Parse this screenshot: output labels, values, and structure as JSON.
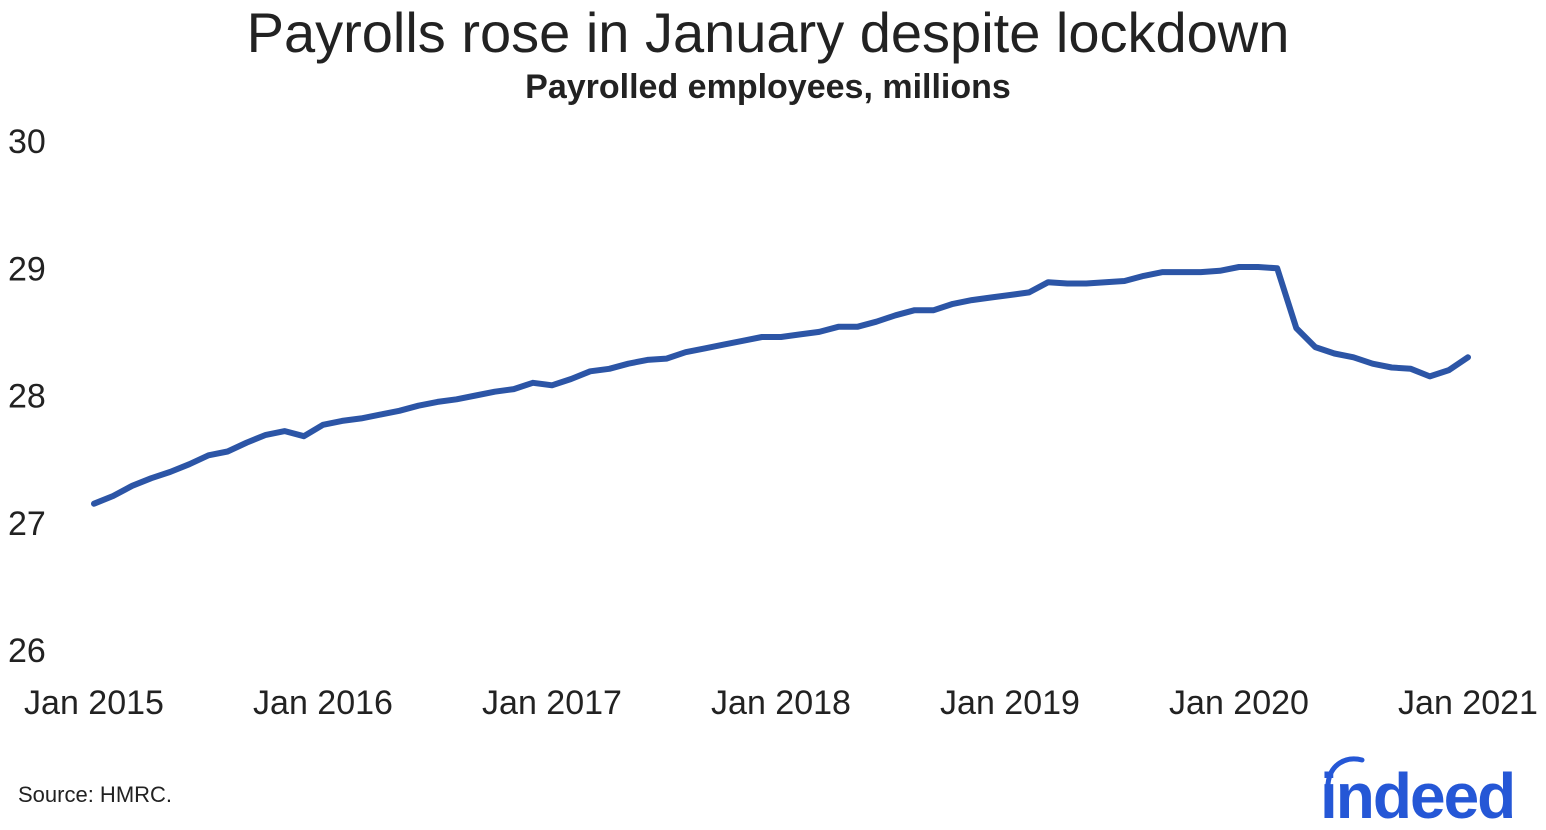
{
  "title": "Payrolls rose in January despite lockdown",
  "subtitle": "Payrolled employees, millions",
  "source": "Source: HMRC.",
  "logo_text": "indeed",
  "colors": {
    "line": "#2c55a6",
    "logo": "#2557d6",
    "text": "#222222"
  },
  "chart_data": {
    "type": "line",
    "title": "Payrolls rose in January despite lockdown",
    "subtitle": "Payrolled employees, millions",
    "xlabel": "",
    "ylabel": "",
    "ylim": [
      26,
      30
    ],
    "yticks": [
      "26",
      "27",
      "28",
      "29",
      "30"
    ],
    "xticks": [
      "Jan 2015",
      "Jan 2016",
      "Jan 2017",
      "Jan 2018",
      "Jan 2019",
      "Jan 2020",
      "Jan 2021"
    ],
    "grid": false,
    "x": [
      "2015-01",
      "2015-02",
      "2015-03",
      "2015-04",
      "2015-05",
      "2015-06",
      "2015-07",
      "2015-08",
      "2015-09",
      "2015-10",
      "2015-11",
      "2015-12",
      "2016-01",
      "2016-02",
      "2016-03",
      "2016-04",
      "2016-05",
      "2016-06",
      "2016-07",
      "2016-08",
      "2016-09",
      "2016-10",
      "2016-11",
      "2016-12",
      "2017-01",
      "2017-02",
      "2017-03",
      "2017-04",
      "2017-05",
      "2017-06",
      "2017-07",
      "2017-08",
      "2017-09",
      "2017-10",
      "2017-11",
      "2017-12",
      "2018-01",
      "2018-02",
      "2018-03",
      "2018-04",
      "2018-05",
      "2018-06",
      "2018-07",
      "2018-08",
      "2018-09",
      "2018-10",
      "2018-11",
      "2018-12",
      "2019-01",
      "2019-02",
      "2019-03",
      "2019-04",
      "2019-05",
      "2019-06",
      "2019-07",
      "2019-08",
      "2019-09",
      "2019-10",
      "2019-11",
      "2019-12",
      "2020-01",
      "2020-02",
      "2020-03",
      "2020-04",
      "2020-05",
      "2020-06",
      "2020-07",
      "2020-08",
      "2020-09",
      "2020-10",
      "2020-11",
      "2020-12",
      "2021-01"
    ],
    "series": [
      {
        "values": [
          27.15,
          27.21,
          27.29,
          27.35,
          27.4,
          27.46,
          27.53,
          27.56,
          27.63,
          27.69,
          27.72,
          27.68,
          27.77,
          27.8,
          27.82,
          27.85,
          27.88,
          27.92,
          27.95,
          27.97,
          28.0,
          28.03,
          28.05,
          28.1,
          28.08,
          28.13,
          28.19,
          28.21,
          28.25,
          28.28,
          28.29,
          28.34,
          28.37,
          28.4,
          28.43,
          28.46,
          28.46,
          28.48,
          28.5,
          28.54,
          28.54,
          28.58,
          28.63,
          28.67,
          28.67,
          28.72,
          28.75,
          28.77,
          28.79,
          28.81,
          28.89,
          28.88,
          28.88,
          28.89,
          28.9,
          28.94,
          28.97,
          28.97,
          28.97,
          28.98,
          29.01,
          29.01,
          29.0,
          28.53,
          28.38,
          28.33,
          28.3,
          28.25,
          28.22,
          28.21,
          28.15,
          28.2,
          28.3
        ]
      }
    ]
  }
}
